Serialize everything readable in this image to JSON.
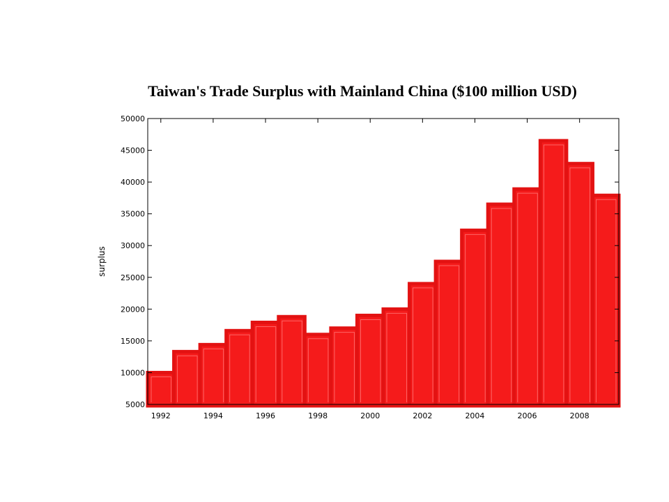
{
  "chart_data": {
    "type": "bar",
    "title": "Taiwan's Trade Surplus with Mainland China ($100 million USD)",
    "xlabel": "",
    "ylabel": "surplus",
    "x": [
      1991.5,
      1992.5,
      1993.5,
      1994.5,
      1995.5,
      1996.5,
      1997.5,
      1998.5,
      1999.5,
      2000.5,
      2001.5,
      2002.5,
      2003.5,
      2004.5,
      2005.5,
      2006.5,
      2007.5,
      2008.5
    ],
    "values": [
      10000,
      13300,
      14400,
      16600,
      17900,
      18800,
      16000,
      17000,
      19000,
      20000,
      24000,
      27500,
      32400,
      36500,
      38900,
      46500,
      42900,
      37900
    ],
    "xlim": [
      1991.5,
      2009.5
    ],
    "ylim": [
      5000,
      50000
    ],
    "xticks": [
      "1992",
      "1994",
      "1996",
      "1998",
      "2000",
      "2002",
      "2004",
      "2006",
      "2008"
    ],
    "yticks": [
      "5000",
      "10000",
      "15000",
      "20000",
      "25000",
      "30000",
      "35000",
      "40000",
      "45000",
      "50000"
    ],
    "grid": false,
    "colors": {
      "bar_fill": "#f51b1b",
      "bar_edge": "#e31212",
      "bar_inner_line": "#ff8080",
      "axis": "#000000"
    }
  }
}
